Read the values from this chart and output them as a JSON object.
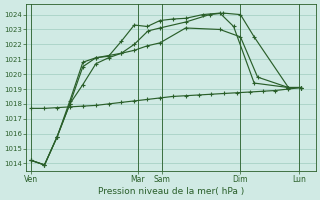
{
  "xlabel": "Pression niveau de la mer( hPa )",
  "ylim": [
    1013.5,
    1024.7
  ],
  "yticks": [
    1014,
    1015,
    1016,
    1017,
    1018,
    1019,
    1020,
    1021,
    1022,
    1023,
    1024
  ],
  "bg_color": "#d0eae4",
  "grid_color": "#a0ccbf",
  "line_color": "#2a5f2a",
  "marker_color": "#2a5f2a",
  "xmin": -0.15,
  "xmax": 8.3,
  "day_x": [
    0.0,
    3.1,
    3.8,
    6.1,
    7.8
  ],
  "day_labels": [
    "Ven",
    "Mar",
    "Sam",
    "Dim",
    "Lun"
  ],
  "series_flat": {
    "x": [
      0.0,
      0.38,
      0.75,
      1.12,
      1.5,
      1.88,
      2.25,
      2.62,
      3.0,
      3.38,
      3.75,
      4.12,
      4.5,
      4.88,
      5.25,
      5.62,
      6.0,
      6.38,
      6.75,
      7.12,
      7.5,
      7.88
    ],
    "y": [
      1017.7,
      1017.7,
      1017.75,
      1017.8,
      1017.85,
      1017.9,
      1018.0,
      1018.1,
      1018.2,
      1018.3,
      1018.4,
      1018.5,
      1018.55,
      1018.6,
      1018.65,
      1018.7,
      1018.75,
      1018.8,
      1018.85,
      1018.9,
      1019.0,
      1019.1
    ]
  },
  "series_mid": {
    "x": [
      0.0,
      0.38,
      0.75,
      1.12,
      1.5,
      1.88,
      2.25,
      2.62,
      3.0,
      3.38,
      3.75,
      4.5,
      5.5,
      6.1,
      6.6,
      7.5,
      7.88
    ],
    "y": [
      1014.2,
      1013.9,
      1015.8,
      1018.0,
      1019.3,
      1020.7,
      1021.1,
      1021.4,
      1021.6,
      1021.9,
      1022.1,
      1023.1,
      1023.0,
      1022.5,
      1019.8,
      1019.1,
      1019.1
    ]
  },
  "series_high1": {
    "x": [
      0.0,
      0.38,
      0.75,
      1.12,
      1.5,
      1.88,
      2.25,
      2.62,
      3.0,
      3.38,
      3.75,
      4.12,
      4.5,
      5.0,
      5.5,
      5.9,
      6.5,
      7.5,
      7.88
    ],
    "y": [
      1014.2,
      1013.9,
      1015.8,
      1018.2,
      1020.8,
      1021.1,
      1021.2,
      1022.2,
      1023.3,
      1023.2,
      1023.6,
      1023.7,
      1023.75,
      1024.0,
      1024.1,
      1023.2,
      1019.4,
      1019.1,
      1019.1
    ]
  },
  "series_high2": {
    "x": [
      0.0,
      0.38,
      0.75,
      1.12,
      1.5,
      1.88,
      2.62,
      3.0,
      3.4,
      3.75,
      4.5,
      5.2,
      5.6,
      6.1,
      6.5,
      7.5,
      7.88
    ],
    "y": [
      1014.2,
      1013.9,
      1015.8,
      1018.0,
      1020.5,
      1021.1,
      1021.4,
      1022.0,
      1022.9,
      1023.1,
      1023.5,
      1024.0,
      1024.1,
      1024.0,
      1022.5,
      1019.1,
      1019.1
    ]
  }
}
